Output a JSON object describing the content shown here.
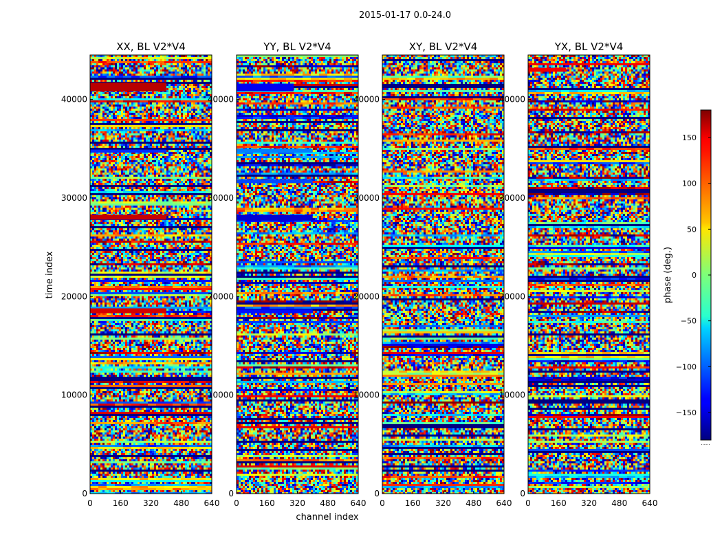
{
  "figure": {
    "suptitle": "2015-01-17 0.0-24.0",
    "xlabel": "channel index",
    "ylabel": "time index"
  },
  "colorbar": {
    "label": "phase (deg.)",
    "range": [
      -180,
      180
    ],
    "ticks": [
      "150",
      "100",
      "50",
      "0",
      "−50",
      "−100",
      "−150"
    ],
    "tick_values": [
      150,
      100,
      50,
      0,
      -50,
      -100,
      -150
    ],
    "colormap": "jet",
    "under_mark": "......"
  },
  "chart_data": [
    {
      "type": "heatmap",
      "title": "XX, BL V2*V4",
      "xlabel": "channel index",
      "ylabel": "time index",
      "xlim": [
        0,
        640
      ],
      "ylim": [
        0,
        44500
      ],
      "xticks": [
        "0",
        "160",
        "320",
        "480",
        "640"
      ],
      "xtick_values": [
        0,
        160,
        320,
        480,
        640
      ],
      "yticks": [
        "0",
        "10000",
        "20000",
        "30000",
        "40000"
      ],
      "ytick_values": [
        0,
        10000,
        20000,
        30000,
        40000
      ],
      "value_label": "phase (deg.)",
      "value_range": [
        -180,
        180
      ],
      "features": [
        {
          "channels": [
            0,
            400
          ],
          "time": [
            40800,
            41700
          ],
          "phase": 160
        },
        {
          "channels": [
            0,
            400
          ],
          "time": [
            27800,
            28300
          ],
          "phase": 155
        },
        {
          "channels": [
            0,
            400
          ],
          "time": [
            18300,
            18800
          ],
          "phase": 150
        },
        {
          "channels": [
            0,
            400
          ],
          "time": [
            34600,
            34900
          ],
          "phase": -120
        }
      ]
    },
    {
      "type": "heatmap",
      "title": "YY, BL V2*V4",
      "xlabel": "channel index",
      "ylabel": "time index",
      "xlim": [
        0,
        640
      ],
      "ylim": [
        0,
        44500
      ],
      "xticks": [
        "0",
        "160",
        "320",
        "480",
        "640"
      ],
      "xtick_values": [
        0,
        160,
        320,
        480,
        640
      ],
      "yticks": [
        "0",
        "10000",
        "20000",
        "30000",
        "40000"
      ],
      "ytick_values": [
        0,
        10000,
        20000,
        30000,
        40000
      ],
      "value_label": "phase (deg.)",
      "value_range": [
        -180,
        180
      ],
      "features": [
        {
          "channels": [
            0,
            300
          ],
          "time": [
            40800,
            41600
          ],
          "phase": -140
        },
        {
          "channels": [
            0,
            400
          ],
          "time": [
            27700,
            28300
          ],
          "phase": -150
        },
        {
          "channels": [
            0,
            400
          ],
          "time": [
            34600,
            35000
          ],
          "phase": -90
        },
        {
          "channels": [
            0,
            400
          ],
          "time": [
            31500,
            31900
          ],
          "phase": -110
        },
        {
          "channels": [
            0,
            400
          ],
          "time": [
            18300,
            18700
          ],
          "phase": -130
        }
      ]
    },
    {
      "type": "heatmap",
      "title": "XY, BL V2*V4",
      "xlabel": "channel index",
      "ylabel": "time index",
      "xlim": [
        0,
        640
      ],
      "ylim": [
        0,
        44500
      ],
      "xticks": [
        "0",
        "160",
        "320",
        "480",
        "640"
      ],
      "xtick_values": [
        0,
        160,
        320,
        480,
        640
      ],
      "yticks": [
        "0",
        "10000",
        "20000",
        "30000",
        "40000"
      ],
      "ytick_values": [
        0,
        10000,
        20000,
        30000,
        40000
      ],
      "value_label": "phase (deg.)",
      "value_range": [
        -180,
        180
      ],
      "features": []
    },
    {
      "type": "heatmap",
      "title": "YX, BL V2*V4",
      "xlabel": "channel index",
      "ylabel": "time index",
      "xlim": [
        0,
        640
      ],
      "ylim": [
        0,
        44500
      ],
      "xticks": [
        "0",
        "160",
        "320",
        "480",
        "640"
      ],
      "xtick_values": [
        0,
        160,
        320,
        480,
        640
      ],
      "yticks": [
        "0",
        "10000",
        "20000",
        "30000",
        "40000"
      ],
      "ytick_values": [
        0,
        10000,
        20000,
        30000,
        40000
      ],
      "value_label": "phase (deg.)",
      "value_range": [
        -180,
        180
      ],
      "features": [
        {
          "channels": [
            0,
            200
          ],
          "time": [
            42800,
            43200
          ],
          "phase": 140
        }
      ]
    }
  ]
}
